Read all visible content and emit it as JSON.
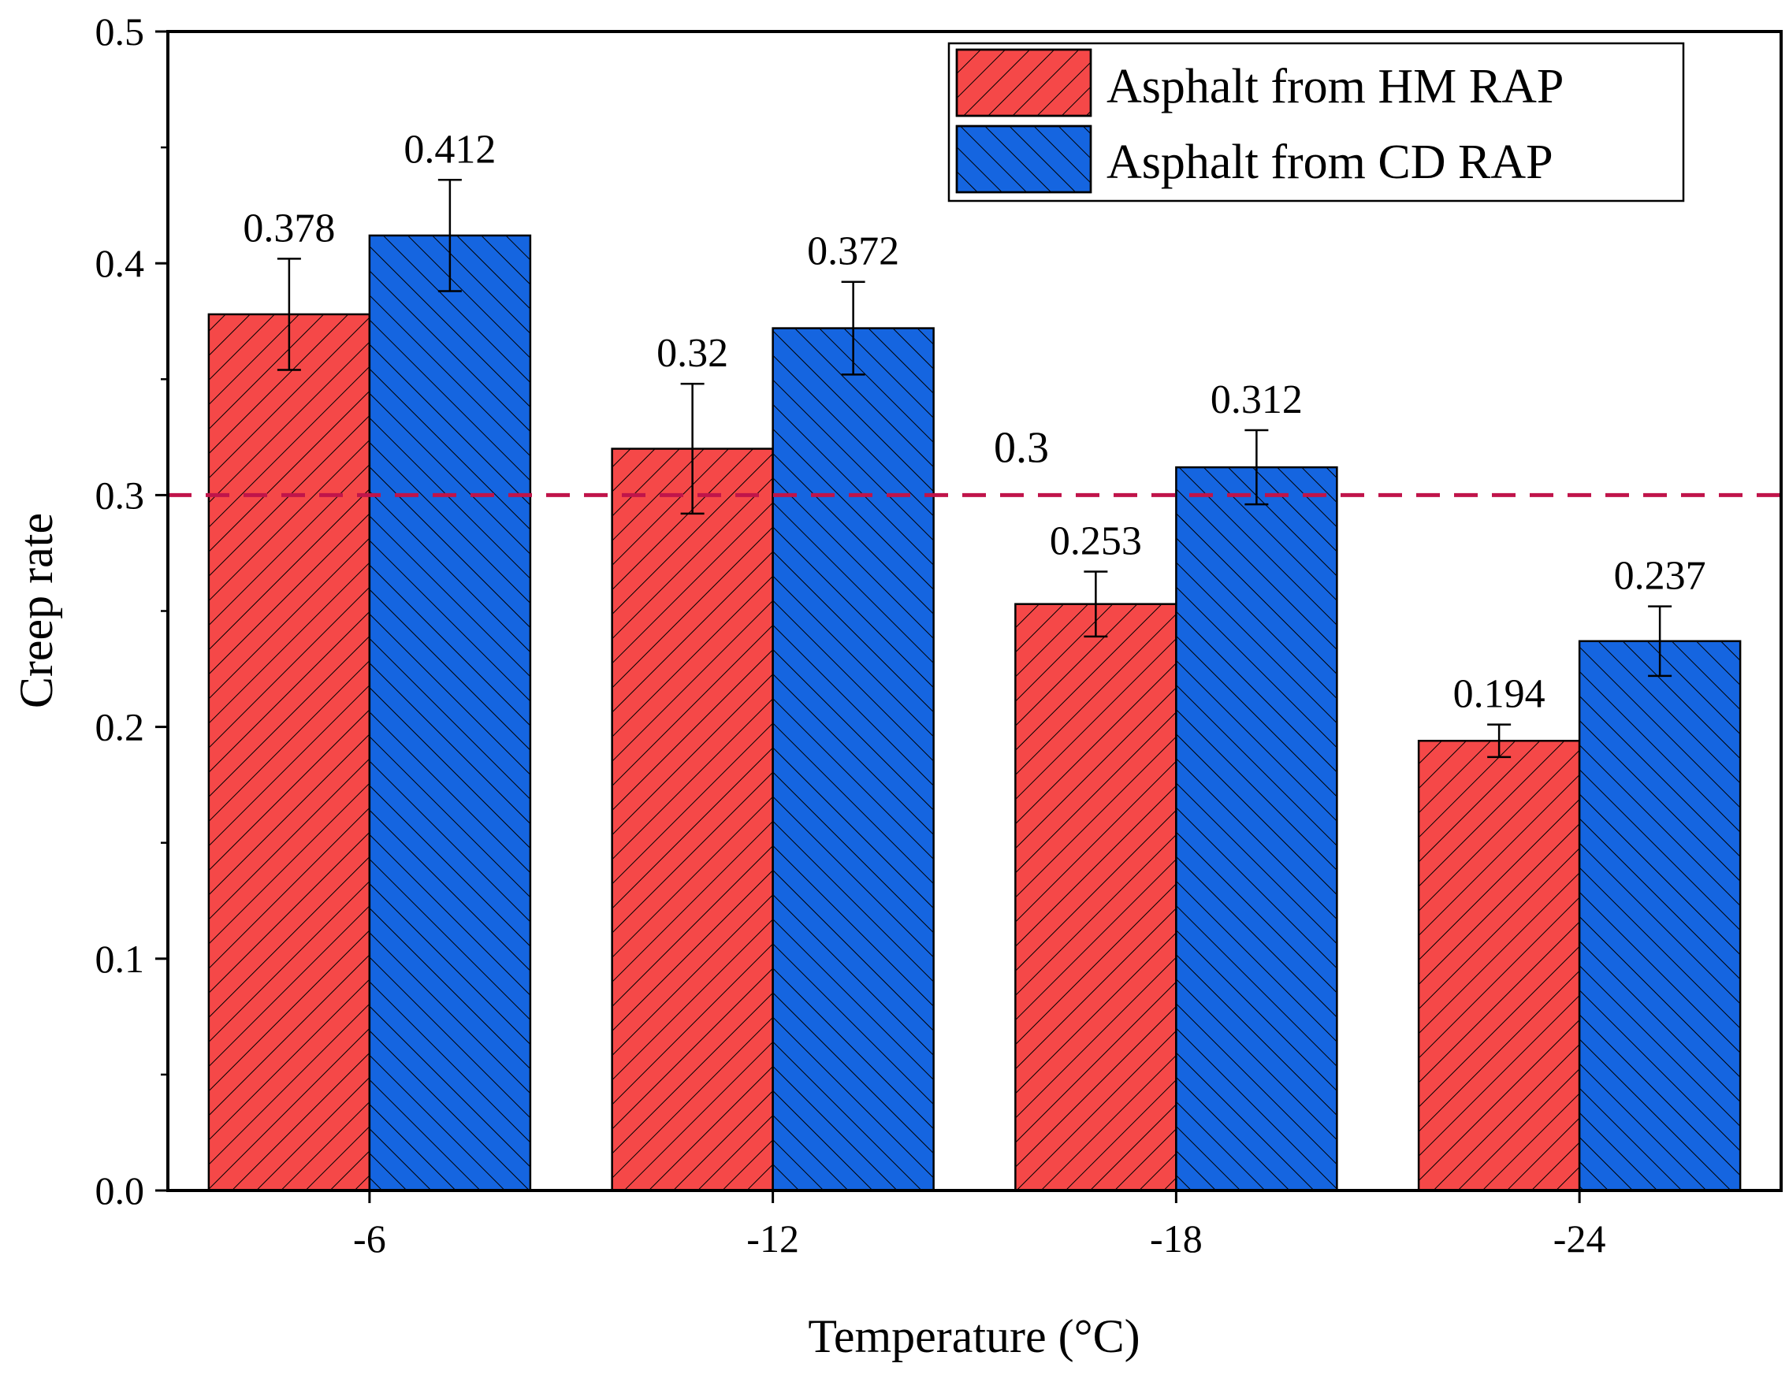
{
  "chart_data": {
    "type": "bar",
    "title": "",
    "xlabel": "Temperature (°C)",
    "ylabel": "Creep rate",
    "categories": [
      "-6",
      "-12",
      "-18",
      "-24"
    ],
    "ylim": [
      0,
      0.5
    ],
    "yticks": [
      "0.0",
      "0.1",
      "0.2",
      "0.3",
      "0.4",
      "0.5"
    ],
    "series": [
      {
        "name": "Asphalt from HM RAP",
        "color": "#f54848",
        "hatch": "forward-diagonal",
        "values": [
          0.378,
          0.32,
          0.253,
          0.194
        ],
        "errors": [
          0.024,
          0.028,
          0.014,
          0.007
        ],
        "labels": [
          "0.378",
          "0.32",
          "0.253",
          "0.194"
        ]
      },
      {
        "name": "Asphalt from CD RAP",
        "color": "#1565e0",
        "hatch": "back-diagonal",
        "values": [
          0.412,
          0.372,
          0.312,
          0.237
        ],
        "errors": [
          0.024,
          0.02,
          0.016,
          0.015
        ],
        "labels": [
          "0.412",
          "0.372",
          "0.312",
          "0.237"
        ]
      }
    ],
    "reference_line": {
      "value": 0.3,
      "label": "0.3",
      "color": "#c0144a",
      "style": "dashed"
    },
    "legend": {
      "position": "top-right"
    },
    "grid": false
  }
}
